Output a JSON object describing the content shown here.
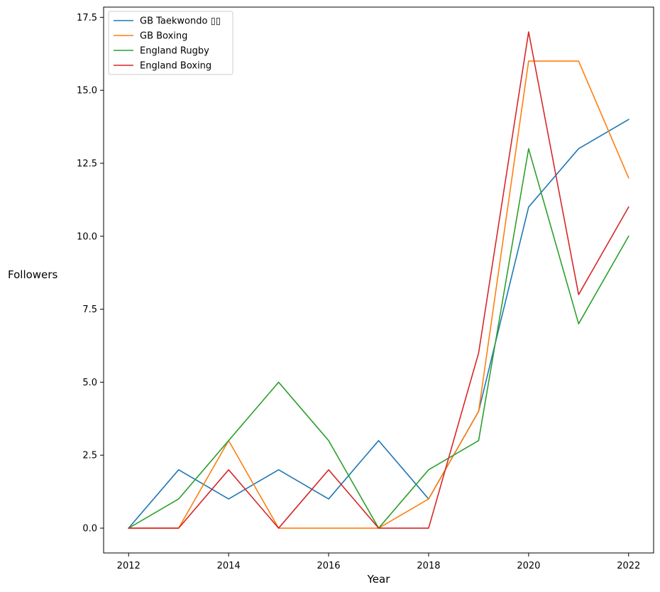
{
  "chart_data": {
    "type": "line",
    "title": "",
    "xlabel": "Year",
    "ylabel": "Followers",
    "x": [
      2012,
      2013,
      2014,
      2015,
      2016,
      2017,
      2018,
      2019,
      2020,
      2021,
      2022
    ],
    "xlim": [
      2011.5,
      2022.5
    ],
    "ylim": [
      -0.85,
      17.85
    ],
    "xticks": [
      2012,
      2014,
      2016,
      2018,
      2020,
      2022
    ],
    "xtick_labels": [
      "2012",
      "2014",
      "2016",
      "2018",
      "2020",
      "2022"
    ],
    "yticks": [
      0,
      2.5,
      5,
      7.5,
      10,
      12.5,
      15,
      17.5
    ],
    "ytick_labels": [
      "0.0",
      "2.5",
      "5.0",
      "7.5",
      "10.0",
      "12.5",
      "15.0",
      "17.5"
    ],
    "grid": false,
    "legend_position": "top-left",
    "series": [
      {
        "name": "GB Taekwondo ▯▯",
        "color": "#1f77b4",
        "values": [
          0,
          2,
          1,
          2,
          1,
          3,
          1,
          4,
          11,
          13,
          14
        ]
      },
      {
        "name": "GB Boxing",
        "color": "#ff7f0e",
        "values": [
          0,
          0,
          3,
          0,
          0,
          0,
          1,
          4,
          16,
          16,
          12
        ]
      },
      {
        "name": "England Rugby",
        "color": "#2ca02c",
        "values": [
          0,
          1,
          3,
          5,
          3,
          0,
          2,
          3,
          13,
          7,
          10
        ]
      },
      {
        "name": "England Boxing",
        "color": "#d62728",
        "values": [
          0,
          0,
          2,
          0,
          2,
          0,
          0,
          6,
          17,
          8,
          11
        ]
      }
    ]
  }
}
